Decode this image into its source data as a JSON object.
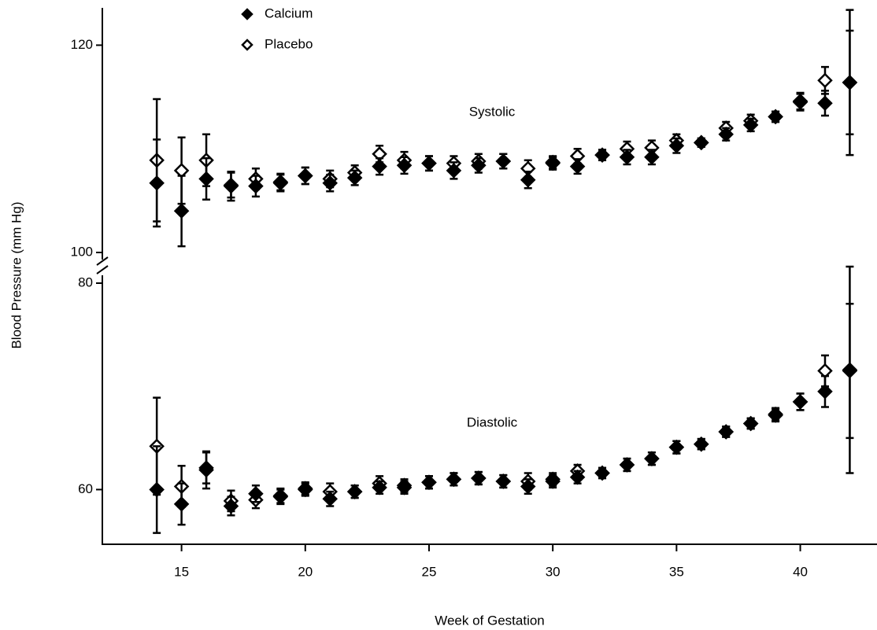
{
  "chart_data": [
    {
      "type": "scatter",
      "label": "Systolic",
      "y_label": "Blood Pressure (mm Hg)",
      "x": [
        14,
        15,
        16,
        17,
        18,
        19,
        20,
        21,
        22,
        23,
        24,
        25,
        26,
        27,
        28,
        29,
        30,
        31,
        32,
        33,
        34,
        35,
        36,
        37,
        38,
        39,
        40,
        41,
        42
      ],
      "xlim": [
        11.8,
        43.1
      ],
      "ylim": [
        100,
        123.6
      ],
      "yticks": [
        100,
        120
      ],
      "series": [
        {
          "name": "Calcium",
          "color": "#000000",
          "marker_fill": "#000000",
          "values": [
            106.7,
            104.0,
            107.1,
            106.4,
            106.4,
            106.7,
            107.4,
            106.7,
            107.2,
            108.3,
            108.4,
            108.6,
            107.9,
            108.4,
            108.8,
            107.0,
            108.6,
            108.3,
            109.4,
            109.2,
            109.2,
            110.3,
            110.6,
            111.4,
            112.3,
            113.1,
            114.5,
            114.4,
            116.4
          ],
          "errors": [
            4.2,
            3.4,
            2.0,
            1.4,
            1.0,
            0.8,
            0.8,
            0.8,
            0.7,
            0.8,
            0.8,
            0.7,
            0.8,
            0.7,
            0.7,
            0.8,
            0.6,
            0.7,
            0.5,
            0.7,
            0.7,
            0.7,
            0.4,
            0.6,
            0.6,
            0.5,
            0.8,
            1.2,
            7.0
          ]
        },
        {
          "name": "Placebo",
          "color": "#000000",
          "marker_fill": "#ffffff",
          "values": [
            108.9,
            107.9,
            108.9,
            106.5,
            107.1,
            106.8,
            107.4,
            107.1,
            107.7,
            109.5,
            108.9,
            108.6,
            108.6,
            108.8,
            108.8,
            108.1,
            108.7,
            109.3,
            109.4,
            110.0,
            110.1,
            110.8,
            110.6,
            112.0,
            112.7,
            113.1,
            114.6,
            116.6,
            116.4
          ],
          "errors": [
            5.9,
            3.2,
            2.5,
            1.2,
            1.0,
            0.8,
            0.8,
            0.8,
            0.7,
            0.8,
            0.8,
            0.7,
            0.7,
            0.7,
            0.7,
            0.8,
            0.6,
            0.7,
            0.5,
            0.7,
            0.7,
            0.6,
            0.4,
            0.6,
            0.6,
            0.5,
            0.8,
            1.3,
            5.0
          ]
        }
      ]
    },
    {
      "type": "scatter",
      "label": "Diastolic",
      "x_label": "Week of Gestation",
      "x": [
        14,
        15,
        16,
        17,
        18,
        19,
        20,
        21,
        22,
        23,
        24,
        25,
        26,
        27,
        28,
        29,
        30,
        31,
        32,
        33,
        34,
        35,
        36,
        37,
        38,
        39,
        40,
        41,
        42
      ],
      "xlim": [
        11.8,
        43.1
      ],
      "xticks": [
        15,
        20,
        25,
        30,
        35,
        40
      ],
      "ylim": [
        54.7,
        80
      ],
      "yticks": [
        60,
        80
      ],
      "series": [
        {
          "color": "#000000",
          "marker_fill": "#000000",
          "values": [
            60.0,
            58.6,
            62.1,
            58.4,
            59.6,
            59.3,
            60.1,
            59.1,
            59.8,
            60.2,
            60.2,
            60.7,
            61.0,
            61.1,
            60.8,
            60.3,
            60.8,
            61.2,
            61.6,
            62.4,
            63.0,
            64.1,
            64.4,
            65.6,
            66.4,
            67.2,
            68.5,
            69.5,
            71.6
          ],
          "errors": [
            4.2,
            2.0,
            1.5,
            0.9,
            0.8,
            0.7,
            0.6,
            0.7,
            0.6,
            0.6,
            0.6,
            0.6,
            0.6,
            0.6,
            0.6,
            0.7,
            0.6,
            0.6,
            0.5,
            0.6,
            0.6,
            0.6,
            0.5,
            0.5,
            0.5,
            0.6,
            0.8,
            1.5,
            10.0
          ]
        },
        {
          "color": "#000000",
          "marker_fill": "#ffffff",
          "values": [
            64.2,
            60.3,
            61.9,
            58.9,
            59.0,
            59.4,
            60.0,
            59.8,
            59.8,
            60.6,
            60.4,
            60.7,
            61.0,
            61.1,
            60.8,
            60.8,
            61.0,
            61.8,
            61.6,
            62.4,
            63.0,
            64.1,
            64.4,
            65.6,
            66.4,
            67.3,
            68.5,
            71.5,
            71.5
          ],
          "errors": [
            4.7,
            2.0,
            1.8,
            1.0,
            0.8,
            0.7,
            0.6,
            0.8,
            0.6,
            0.7,
            0.6,
            0.6,
            0.6,
            0.6,
            0.6,
            0.8,
            0.6,
            0.6,
            0.5,
            0.6,
            0.6,
            0.6,
            0.5,
            0.5,
            0.5,
            0.6,
            0.8,
            1.5,
            6.5
          ]
        }
      ]
    }
  ]
}
